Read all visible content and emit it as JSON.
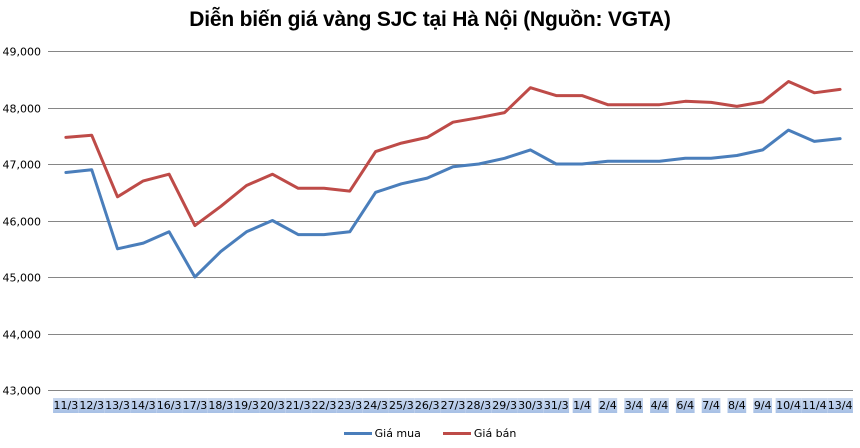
{
  "title": "Diễn biến giá vàng SJC tại Hà Nội (Nguồn: VGTA)",
  "colors": {
    "gia_mua": "#4a7ebb",
    "gia_ban": "#be4b48",
    "grid": "#868686",
    "label_band_top": "#c9d8ef",
    "label_band_bottom": "#a7c0e5"
  },
  "legend": [
    {
      "name": "Giá mua",
      "color": "#4a7ebb"
    },
    {
      "name": "Giá bán",
      "color": "#be4b48"
    }
  ],
  "chart_data": {
    "type": "line",
    "title": "Diễn biến giá vàng SJC tại Hà Nội (Nguồn: VGTA)",
    "xlabel": "",
    "ylabel": "",
    "ylim": [
      43000,
      49000
    ],
    "yticks": [
      43000,
      44000,
      45000,
      46000,
      47000,
      48000,
      49000
    ],
    "ytick_labels": [
      "43,000",
      "44,000",
      "45,000",
      "46,000",
      "47,000",
      "48,000",
      "49,000"
    ],
    "grid": true,
    "legend_position": "bottom",
    "categories": [
      "11/3",
      "12/3",
      "13/3",
      "14/3",
      "16/3",
      "17/3",
      "18/3",
      "19/3",
      "20/3",
      "21/3",
      "22/3",
      "23/3",
      "24/3",
      "25/3",
      "26/3",
      "27/3",
      "28/3",
      "29/3",
      "30/3",
      "31/3",
      "1/4",
      "2/4",
      "3/4",
      "4/4",
      "6/4",
      "7/4",
      "8/4",
      "9/4",
      "10/4",
      "11/4",
      "13/4"
    ],
    "series": [
      {
        "name": "Giá mua",
        "color": "#4a7ebb",
        "values": [
          46850,
          46900,
          45500,
          45600,
          45800,
          45000,
          45450,
          45800,
          46000,
          45750,
          45750,
          45800,
          46500,
          46650,
          46750,
          46950,
          47000,
          47100,
          47250,
          47000,
          47000,
          47050,
          47050,
          47050,
          47100,
          47100,
          47150,
          47250,
          47600,
          47400,
          47450
        ]
      },
      {
        "name": "Giá bán",
        "color": "#be4b48",
        "values": [
          47470,
          47510,
          46420,
          46700,
          46820,
          45910,
          46250,
          46620,
          46820,
          46570,
          46570,
          46520,
          47220,
          47370,
          47470,
          47740,
          47820,
          47910,
          48350,
          48210,
          48210,
          48050,
          48050,
          48050,
          48110,
          48090,
          48020,
          48100,
          48460,
          48260,
          48320
        ]
      }
    ]
  }
}
